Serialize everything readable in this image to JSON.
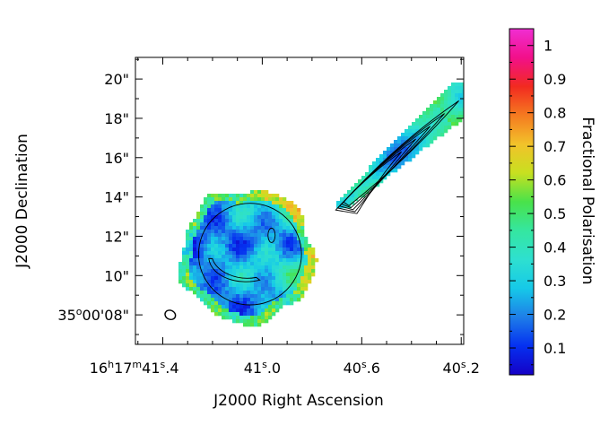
{
  "chart_data": {
    "type": "heatmap",
    "title": "",
    "xlabel": "J2000 Right Ascension",
    "ylabel": "J2000 Declination",
    "x_ticks": [
      {
        "label_parts": {
          "h": "16",
          "m": "17",
          "s": "41",
          "frac": ".4"
        },
        "sec": 41.4
      },
      {
        "label_parts": {
          "s": "41",
          "frac": ".0"
        },
        "sec": 41.0
      },
      {
        "label_parts": {
          "s": "40",
          "frac": ".6"
        },
        "sec": 40.6
      },
      {
        "label_parts": {
          "s": "40",
          "frac": ".2"
        },
        "sec": 40.2
      }
    ],
    "x_range_sec": [
      41.51,
      40.19
    ],
    "y_ticks": [
      {
        "label": "35°00'08\"",
        "label_parts": {
          "deg": "35",
          "arcmin": "00'08\""
        },
        "arcsec": 8
      },
      {
        "label": "10\"",
        "arcsec": 10
      },
      {
        "label": "12\"",
        "arcsec": 12
      },
      {
        "label": "14\"",
        "arcsec": 14
      },
      {
        "label": "16\"",
        "arcsec": 16
      },
      {
        "label": "18\"",
        "arcsec": 18
      },
      {
        "label": "20\"",
        "arcsec": 20
      }
    ],
    "y_range_arcsec": [
      6.5,
      21.1
    ],
    "colorbar": {
      "label": "Fractional Polarisation",
      "range": [
        0.02,
        1.05
      ],
      "ticks": [
        {
          "value": 0.1,
          "label": "0.1"
        },
        {
          "value": 0.2,
          "label": "0.2"
        },
        {
          "value": 0.3,
          "label": "0.3"
        },
        {
          "value": 0.4,
          "label": "0.4"
        },
        {
          "value": 0.5,
          "label": "0.5"
        },
        {
          "value": 0.6,
          "label": "0.6"
        },
        {
          "value": 0.7,
          "label": "0.7"
        },
        {
          "value": 0.8,
          "label": "0.8"
        },
        {
          "value": 0.9,
          "label": "0.9"
        },
        {
          "value": 1.0,
          "label": "1"
        }
      ],
      "colormap": [
        "#1500c6",
        "#0530f0",
        "#1e7ee8",
        "#16c9e8",
        "#2ee0d0",
        "#35e6a0",
        "#49e24a",
        "#c8e020",
        "#f2c22a",
        "#f57a20",
        "#f22a20",
        "#f2108a",
        "#f02ed2"
      ]
    },
    "regions": [
      {
        "name": "southern lobe",
        "center_sec": 41.06,
        "center_arcsec": 11.0,
        "radius_arcsec": 3.4,
        "typical_fraction": 0.22
      },
      {
        "name": "northern jet",
        "from": {
          "sec": 40.68,
          "arcsec": 13.6
        },
        "to": {
          "sec": 40.2,
          "arcsec": 19.0
        },
        "typical_fraction": 0.25
      }
    ],
    "beam": {
      "sec": 41.37,
      "arcsec": 8.0
    }
  },
  "colors": {
    "background": "#ffffff",
    "axes": "#000000",
    "contour": "#000000"
  }
}
